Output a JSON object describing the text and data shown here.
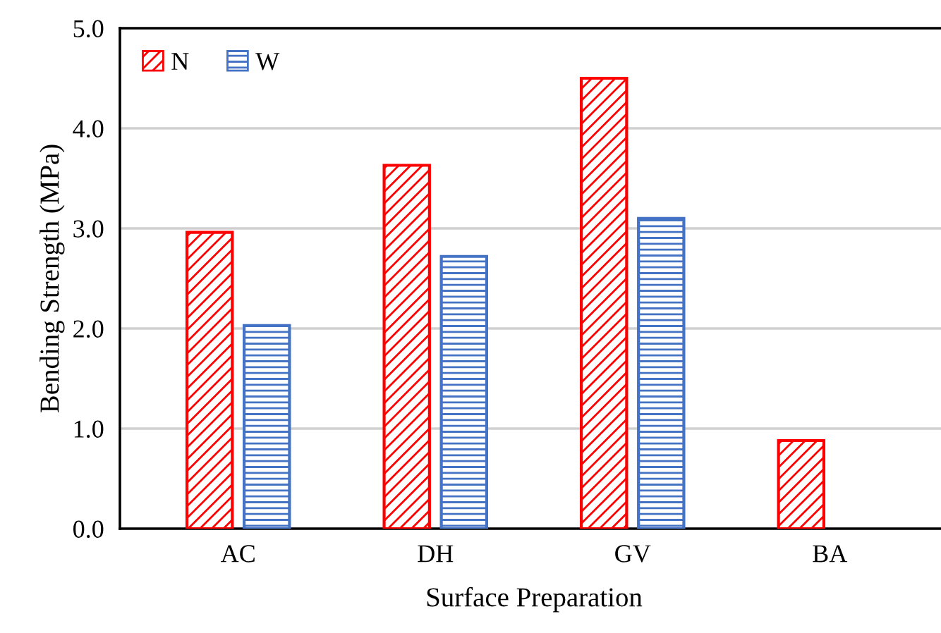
{
  "chart_data": {
    "type": "bar",
    "xlabel": "Surface Preparation",
    "ylabel": "Bending Strength (MPa)",
    "categories": [
      "AC",
      "DH",
      "GV",
      "BA"
    ],
    "series": [
      {
        "name": "N",
        "color": "#ff0000",
        "values": [
          2.96,
          3.63,
          4.5,
          0.88
        ]
      },
      {
        "name": "W",
        "color": "#4472c4",
        "values": [
          2.03,
          2.72,
          3.1,
          null
        ]
      }
    ],
    "ylim": [
      0,
      5
    ],
    "yticks": [
      {
        "value": 0,
        "label": "0.0"
      },
      {
        "value": 1,
        "label": "1.0"
      },
      {
        "value": 2,
        "label": "2.0"
      },
      {
        "value": 3,
        "label": "3.0"
      },
      {
        "value": 4,
        "label": "4.0"
      },
      {
        "value": 5,
        "label": "5.0"
      }
    ],
    "grid": "y",
    "legend": "top left"
  }
}
